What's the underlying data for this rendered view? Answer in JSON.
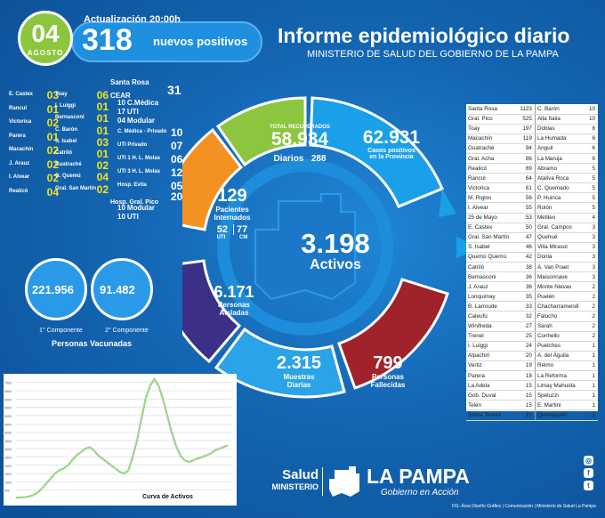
{
  "header": {
    "day": "04",
    "month": "AGOSTO",
    "update_label": "Actualización 20:00h",
    "new_positives": "318",
    "new_positives_label": "nuevos positivos",
    "title": "Informe epidemiológico diario",
    "subtitle": "MINISTERIO DE SALUD DEL GOBIERNO DE LA PAMPA"
  },
  "hospital_left": [
    {
      "name": "E. Castex",
      "value": "03"
    },
    {
      "name": "Rancul",
      "value": "01"
    },
    {
      "name": "Victorica",
      "value": "02"
    },
    {
      "name": "Parera",
      "value": "01"
    },
    {
      "name": "Macachín",
      "value": "02"
    },
    {
      "name": "J. Arauz",
      "value": "02"
    },
    {
      "name": "I. Alvear",
      "value": "02"
    },
    {
      "name": "Realicó",
      "value": "04"
    }
  ],
  "hospital_mid": [
    {
      "name": "Toay",
      "value": "06"
    },
    {
      "name": "I. Luiggi",
      "value": "01"
    },
    {
      "name": "Bernasconi",
      "value": "01"
    },
    {
      "name": "C. Barón",
      "value": "01"
    },
    {
      "name": "S. Isabel",
      "value": "03"
    },
    {
      "name": "Catriló",
      "value": "01"
    },
    {
      "name": "Guatraché",
      "value": "02"
    },
    {
      "name": "G. Quemú",
      "value": "04"
    },
    {
      "name": "Gral. San Martín",
      "value": "02"
    }
  ],
  "hospital_right": {
    "santa_rosa": "Santa Rosa",
    "cear_label": "CEAR",
    "cear_value": "31",
    "cear_items": [
      {
        "value": "10",
        "name": "C.Médica"
      },
      {
        "value": "17",
        "name": "UTI"
      },
      {
        "value": "04",
        "name": "Modular"
      }
    ],
    "rows": [
      {
        "name": "C. Médica - Privado",
        "value": "10"
      },
      {
        "name": "UTI Privado",
        "value": "07"
      },
      {
        "name": "UTI 1 H. L. Molas",
        "value": "06"
      },
      {
        "name": "UTI 3 H. L. Molas",
        "value": "12"
      },
      {
        "name": "Hosp. Evita",
        "value": "05"
      }
    ],
    "gral_pico_label": "Hosp. Gral. Pico",
    "gral_pico_value": "20",
    "gral_pico_items": [
      {
        "value": "10",
        "name": "Modular"
      },
      {
        "value": "10",
        "name": "UTI"
      }
    ]
  },
  "ring": {
    "recovered_label": "TOTAL RECUPERADOS",
    "recovered": "58.934",
    "recovered_daily_label": "Diarios",
    "recovered_daily": "288",
    "positives": "62.931",
    "positives_label1": "Casos positivos",
    "positives_label2": "en la Provincia",
    "hospitalized": "129",
    "hospitalized_label1": "Pacientes",
    "hospitalized_label2": "Internados",
    "uti": "52",
    "uti_label": "UTI",
    "cm": "77",
    "cm_label": "CM",
    "active": "3.198",
    "active_label": "Activos",
    "isolated": "6.171",
    "isolated_label1": "Personas",
    "isolated_label2": "Aisladas",
    "samples": "2.315",
    "samples_label1": "Muestras",
    "samples_label2": "Diarias",
    "deaths": "799",
    "deaths_label1": "Personas",
    "deaths_label2": "Fallecidas"
  },
  "vaccines": {
    "first": "221.956",
    "first_label": "1° Componente",
    "second": "91.482",
    "second_label": "2° Componente",
    "title": "Personas Vacunadas"
  },
  "table": {
    "left": [
      [
        "Santa Rosa",
        "1123"
      ],
      [
        "Gral. Pico",
        "525"
      ],
      [
        "Toay",
        "197"
      ],
      [
        "Macachín",
        "119"
      ],
      [
        "Guatraché",
        "94"
      ],
      [
        "Gral. Acha",
        "86"
      ],
      [
        "Realicó",
        "69"
      ],
      [
        "Rancul",
        "64"
      ],
      [
        "Victorica",
        "61"
      ],
      [
        "M. Riglos",
        "56"
      ],
      [
        "I. Alvear",
        "55"
      ],
      [
        "25 de Mayo",
        "53"
      ],
      [
        "E. Castex",
        "50"
      ],
      [
        "Gral. San Martín",
        "47"
      ],
      [
        "S. Isabel",
        "46"
      ],
      [
        "Quemú Quemú",
        "42"
      ],
      [
        "Catriló",
        "38"
      ],
      [
        "Bernasconi",
        "36"
      ],
      [
        "J. Arauz",
        "36"
      ],
      [
        "Lonquimay",
        "35"
      ],
      [
        "B. Larroude",
        "33"
      ],
      [
        "Caleufú",
        "32"
      ],
      [
        "Winifreda",
        "27"
      ],
      [
        "Trenel",
        "25"
      ],
      [
        "I. Luiggi",
        "24"
      ],
      [
        "Alpachiri",
        "20"
      ],
      [
        "Vertiz",
        "19"
      ],
      [
        "Parera",
        "18"
      ],
      [
        "La Adela",
        "15"
      ],
      [
        "Gob. Duval",
        "15"
      ],
      [
        "Telén",
        "15"
      ],
      [
        "Santa Teresa",
        "10"
      ]
    ],
    "right": [
      [
        "C. Barón",
        "10"
      ],
      [
        "Alta Italia",
        "10"
      ],
      [
        "Doblas",
        "8"
      ],
      [
        "La Humada",
        "6"
      ],
      [
        "Anguil",
        "6"
      ],
      [
        "La Maruja",
        "6"
      ],
      [
        "Abramo",
        "5"
      ],
      [
        "Ataliva Roca",
        "5"
      ],
      [
        "C. Quemado",
        "5"
      ],
      [
        "P. Huinca",
        "5"
      ],
      [
        "Rolón",
        "5"
      ],
      [
        "Metileo",
        "4"
      ],
      [
        "Gral. Campos",
        "3"
      ],
      [
        "Quehué",
        "3"
      ],
      [
        "Villa Mirasol",
        "3"
      ],
      [
        "Dorila",
        "3"
      ],
      [
        "A. Van Praet",
        "3"
      ],
      [
        "Maisonnave",
        "3"
      ],
      [
        "Monte Nievas",
        "2"
      ],
      [
        "Puelén",
        "2"
      ],
      [
        "Chacharramendi",
        "2"
      ],
      [
        "Falucho",
        "2"
      ],
      [
        "Sarah",
        "2"
      ],
      [
        "Conhello",
        "2"
      ],
      [
        "Puelches",
        "1"
      ],
      [
        "A. del Águila",
        "1"
      ],
      [
        "Relmo",
        "1"
      ],
      [
        "La Reforma",
        "1"
      ],
      [
        "Limay Mahuida",
        "1"
      ],
      [
        "Speluzzi",
        "1"
      ],
      [
        "E. Martini",
        "1"
      ],
      [
        "Quetrequén",
        "1"
      ]
    ]
  },
  "chart_data": {
    "type": "line",
    "title": "Curva de Activos",
    "y_ticks": [
      "7000",
      "6500",
      "6000",
      "5500",
      "5000",
      "4500",
      "4000",
      "3500",
      "3000",
      "2500",
      "2000",
      "1500",
      "1000",
      "500"
    ],
    "ylim": [
      0,
      7200
    ],
    "grid": true,
    "series": [
      {
        "color": "#3fa9f5",
        "values": [
          50,
          60,
          80,
          120,
          200,
          350,
          600,
          900,
          1200,
          1500,
          1700,
          1800,
          2000,
          2300,
          2600,
          2800,
          3000,
          3100,
          2900,
          2600,
          2400,
          2200,
          2000,
          1800,
          1600,
          1500,
          1700,
          2500,
          3500,
          4800,
          6000,
          6800,
          7200,
          6800,
          6000,
          5000,
          4000,
          3200,
          2600,
          2300,
          2200,
          2300,
          2400,
          2500,
          2600,
          2700,
          2900,
          3000,
          3100,
          3198
        ]
      },
      {
        "color": "#c8e63c",
        "values": [
          50,
          60,
          80,
          120,
          200,
          350,
          600,
          900,
          1200,
          1500,
          1700,
          1800,
          2000,
          2300,
          2600,
          2800,
          3000,
          3100,
          2900,
          2600,
          2400,
          2200,
          2000,
          1800,
          1600,
          1500,
          1700,
          2500,
          3500,
          4800,
          6000,
          6800,
          7200,
          6800,
          6000,
          5000,
          4000,
          3200,
          2600,
          2300,
          2200,
          2300,
          2400,
          2500,
          2600,
          2700,
          2900,
          3000,
          3100,
          3198
        ]
      }
    ]
  },
  "footer": {
    "salud": "Salud",
    "ministerio": "MINISTERIO",
    "la_pampa": "LA PAMPA",
    "gobierno": "Gobierno en Acción",
    "credits": "DG: Área Diseño Gráfico | Comunicación | Ministerio de Salud La Pampa"
  },
  "social_icons": [
    "instagram-icon",
    "facebook-icon",
    "twitter-icon"
  ],
  "colors": {
    "background": "#1466b3",
    "green": "#8cc63f",
    "orange": "#f39223",
    "purple": "#3b2f86",
    "red": "#a0222a",
    "lightblue": "#2aa3e8",
    "yellow": "#f6e21a"
  }
}
